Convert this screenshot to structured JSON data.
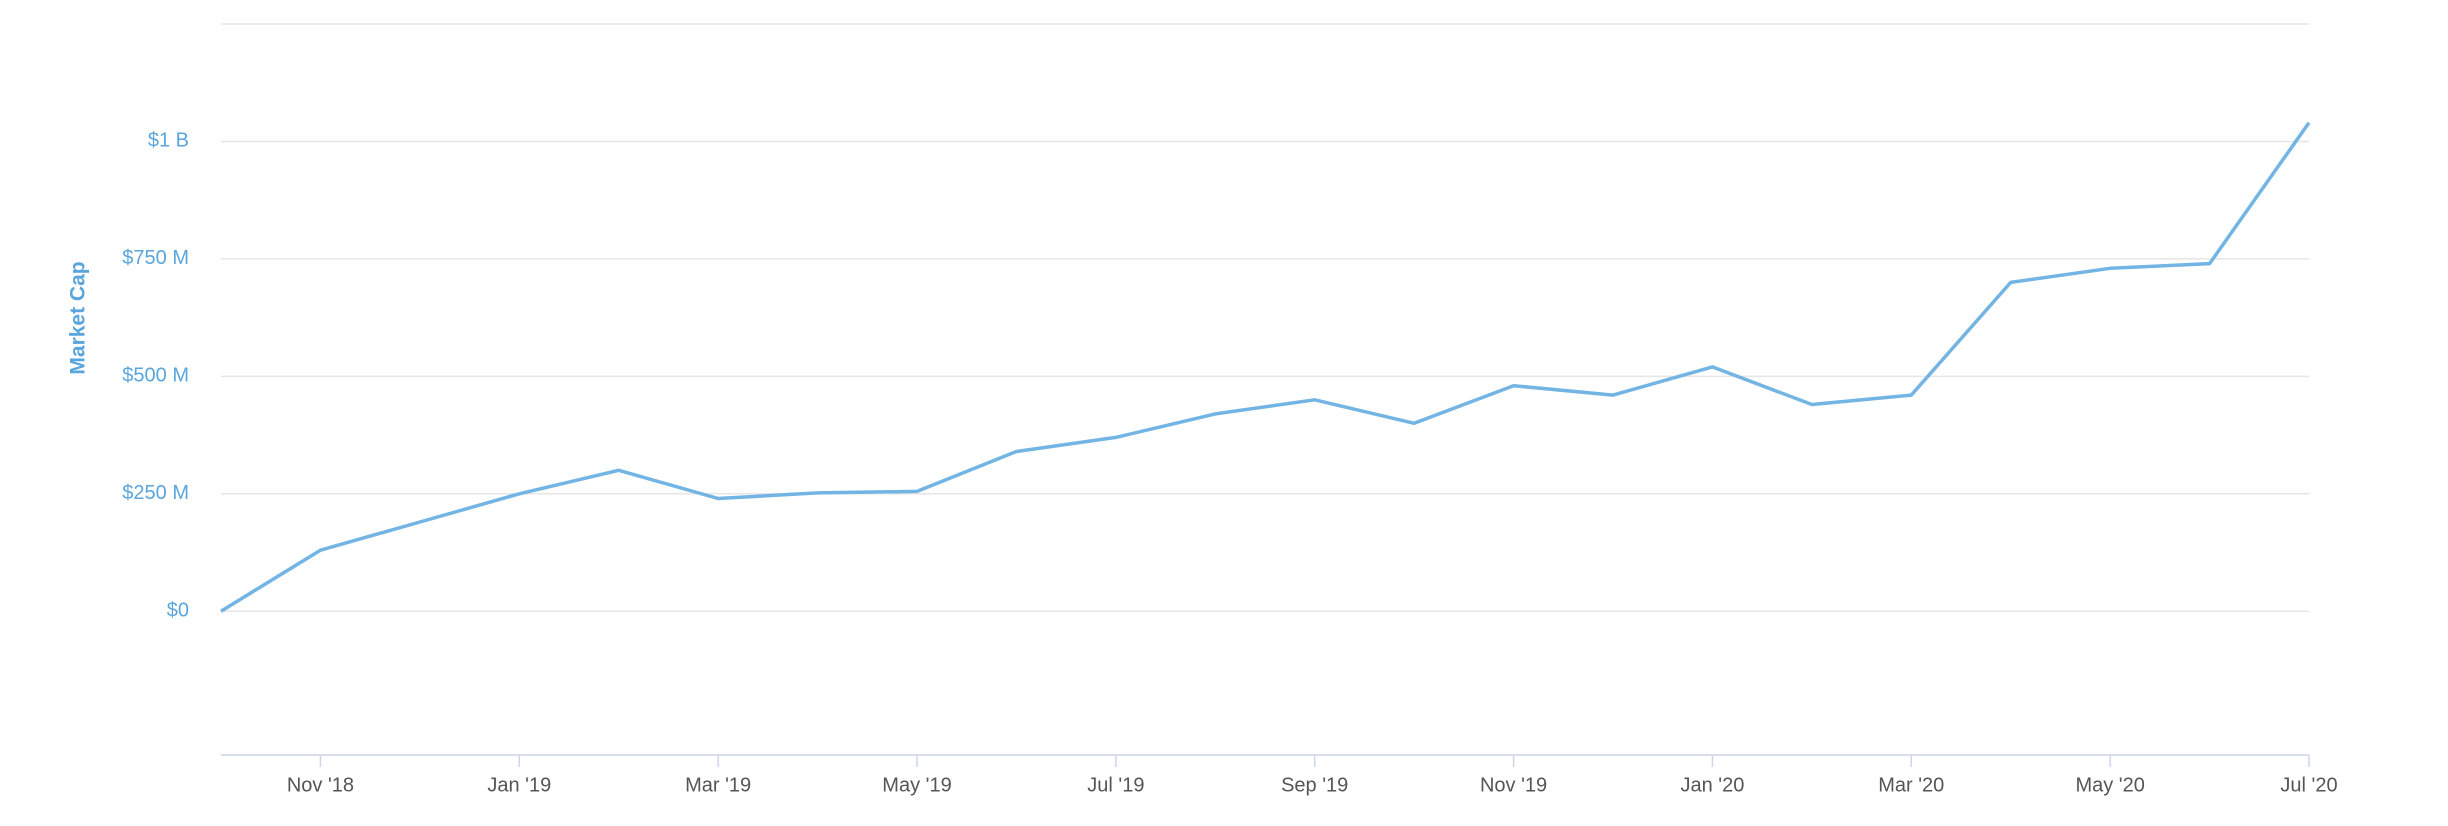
{
  "chart_data": {
    "type": "line",
    "y_label": "Market Cap",
    "x": [
      "2018-10",
      "2018-11",
      "2018-12",
      "2019-01",
      "2019-02",
      "2019-03",
      "2019-04",
      "2019-05",
      "2019-06",
      "2019-07",
      "2019-08",
      "2019-09",
      "2019-10",
      "2019-11",
      "2019-12",
      "2020-01",
      "2020-02",
      "2020-03",
      "2020-04",
      "2020-05",
      "2020-06",
      "2020-07"
    ],
    "series": [
      {
        "name": "Market Cap",
        "color": "#72b4e4",
        "values": [
          0,
          130,
          190,
          250,
          300,
          240,
          252,
          255,
          340,
          370,
          420,
          450,
          400,
          480,
          460,
          520,
          440,
          460,
          700,
          730,
          740,
          1040
        ]
      }
    ],
    "xlim": [
      "2018-10",
      "2020-07"
    ],
    "xticks": [
      {
        "value": "2018-11",
        "label": "Nov '18"
      },
      {
        "value": "2019-01",
        "label": "Jan '19"
      },
      {
        "value": "2019-03",
        "label": "Mar '19"
      },
      {
        "value": "2019-05",
        "label": "May '19"
      },
      {
        "value": "2019-07",
        "label": "Jul '19"
      },
      {
        "value": "2019-09",
        "label": "Sep '19"
      },
      {
        "value": "2019-11",
        "label": "Nov '19"
      },
      {
        "value": "2020-01",
        "label": "Jan '20"
      },
      {
        "value": "2020-03",
        "label": "Mar '20"
      },
      {
        "value": "2020-05",
        "label": "May '20"
      },
      {
        "value": "2020-07",
        "label": "Jul '20"
      }
    ],
    "ylim": [
      -306,
      1250
    ],
    "yticks": [
      {
        "value": 0,
        "label": "$0"
      },
      {
        "value": 250,
        "label": "$250 M"
      },
      {
        "value": 500,
        "label": "$500 M"
      },
      {
        "value": 750,
        "label": "$750 M"
      },
      {
        "value": 1000,
        "label": "$1 B"
      }
    ],
    "grid": true
  }
}
